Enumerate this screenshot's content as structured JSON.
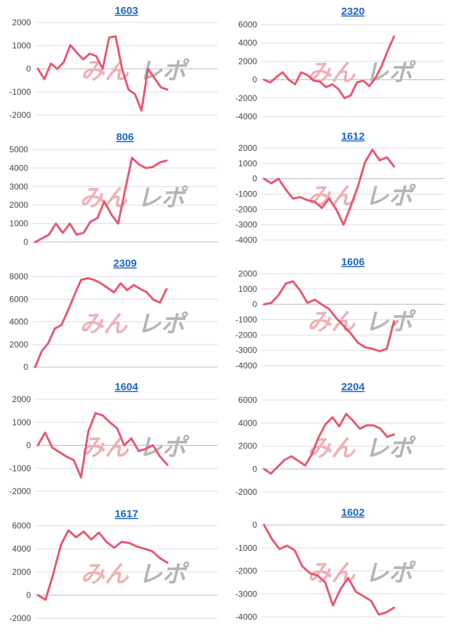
{
  "watermark": {
    "left": "みん",
    "right": "レポ"
  },
  "colors": {
    "line": "#e8566f",
    "title": "#1b66c9",
    "grid": "#dcdcdc"
  },
  "chart_data": [
    {
      "type": "line",
      "title": "1603",
      "yticks": [
        2000,
        1000,
        0,
        -1000,
        -2000
      ],
      "ylim": [
        -2000,
        2000
      ],
      "values": [
        0,
        -450,
        220,
        0,
        300,
        1020,
        700,
        400,
        650,
        550,
        0,
        1350,
        1400,
        0,
        -900,
        -1100,
        -1800,
        0,
        -400,
        -800,
        -900
      ]
    },
    {
      "type": "line",
      "title": "2320",
      "yticks": [
        6000,
        4000,
        2000,
        0,
        -2000,
        -4000
      ],
      "ylim": [
        -4000,
        6000
      ],
      "values": [
        0,
        -300,
        300,
        800,
        0,
        -500,
        800,
        500,
        -100,
        -200,
        -800,
        -500,
        -1000,
        -2000,
        -1700,
        -300,
        -100,
        -700,
        200,
        1500,
        3200,
        4700
      ]
    },
    {
      "type": "line",
      "title": "806",
      "yticks": [
        5000,
        4000,
        3000,
        2000,
        1000,
        0
      ],
      "ylim": [
        0,
        5000
      ],
      "values": [
        0,
        200,
        400,
        1000,
        500,
        1000,
        400,
        500,
        1100,
        1300,
        2200,
        1500,
        1000,
        2800,
        4550,
        4200,
        4000,
        4050,
        4300,
        4400
      ]
    },
    {
      "type": "line",
      "title": "1612",
      "yticks": [
        2000,
        1000,
        0,
        -1000,
        -2000,
        -3000,
        -4000
      ],
      "ylim": [
        -4000,
        2000
      ],
      "values": [
        0,
        -300,
        0,
        -700,
        -1300,
        -1200,
        -1400,
        -1500,
        -1900,
        -1300,
        -2000,
        -3000,
        -1800,
        -500,
        1100,
        1900,
        1200,
        1400,
        800
      ]
    },
    {
      "type": "line",
      "title": "2309",
      "yticks": [
        8000,
        6000,
        4000,
        2000,
        0
      ],
      "ylim": [
        0,
        8000
      ],
      "values": [
        0,
        1400,
        2100,
        3400,
        3700,
        5000,
        6400,
        7700,
        7850,
        7700,
        7400,
        7000,
        6600,
        7400,
        6800,
        7250,
        6900,
        6600,
        5950,
        5700,
        6900
      ]
    },
    {
      "type": "line",
      "title": "1606",
      "yticks": [
        2000,
        1000,
        0,
        -1000,
        -2000,
        -3000,
        -4000
      ],
      "ylim": [
        -4000,
        2000
      ],
      "values": [
        0,
        100,
        600,
        1350,
        1500,
        900,
        100,
        300,
        0,
        -300,
        -900,
        -1400,
        -1900,
        -2500,
        -2800,
        -2900,
        -3050,
        -2900,
        -1100
      ]
    },
    {
      "type": "line",
      "title": "1604",
      "yticks": [
        2000,
        1000,
        0,
        -1000,
        -2000
      ],
      "ylim": [
        -2000,
        2000
      ],
      "values": [
        0,
        550,
        -100,
        -300,
        -500,
        -650,
        -1400,
        600,
        1400,
        1300,
        1000,
        750,
        0,
        300,
        -250,
        -150,
        0,
        -500,
        -850
      ]
    },
    {
      "type": "line",
      "title": "2204",
      "yticks": [
        6000,
        4000,
        2000,
        0,
        -2000
      ],
      "ylim": [
        -2000,
        6000
      ],
      "values": [
        0,
        -400,
        200,
        800,
        1100,
        700,
        300,
        1300,
        2800,
        3900,
        4500,
        3700,
        4800,
        4200,
        3500,
        3800,
        3800,
        3500,
        2800,
        3000
      ]
    },
    {
      "type": "line",
      "title": "1617",
      "yticks": [
        6000,
        4000,
        2000,
        0,
        -2000
      ],
      "ylim": [
        -2000,
        6000
      ],
      "values": [
        0,
        -400,
        1800,
        4300,
        5600,
        5000,
        5500,
        4800,
        5400,
        4600,
        4100,
        4600,
        4500,
        4200,
        4000,
        3800,
        3200,
        2800
      ]
    },
    {
      "type": "line",
      "title": "1602",
      "yticks": [
        0,
        -1000,
        -2000,
        -3000,
        -4000
      ],
      "ylim": [
        -4000,
        0
      ],
      "values": [
        0,
        -600,
        -1050,
        -900,
        -1100,
        -1800,
        -2100,
        -2200,
        -2500,
        -3500,
        -2800,
        -2300,
        -2900,
        -3100,
        -3300,
        -3900,
        -3800,
        -3600
      ]
    }
  ]
}
